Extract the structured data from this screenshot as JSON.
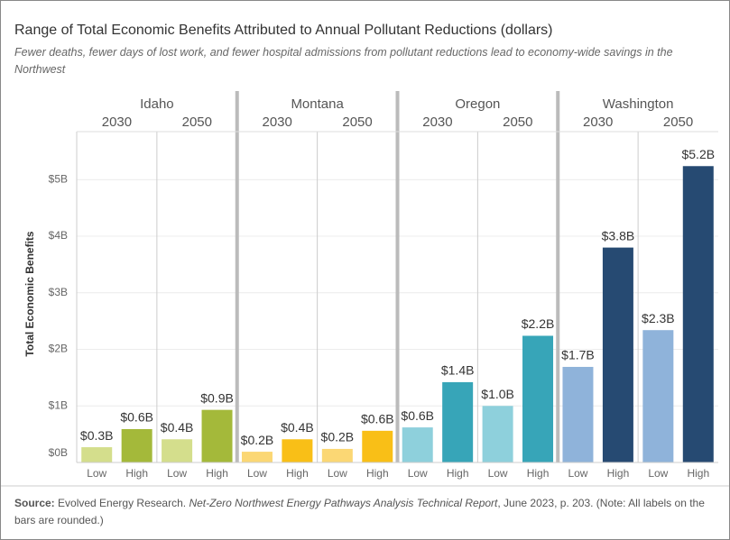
{
  "chart_data": {
    "type": "bar",
    "title": "Range of Total Economic Benefits Attributed to Annual Pollutant Reductions (dollars)",
    "subtitle": "Fewer deaths, fewer days of lost work, and fewer hospital admissions from pollutant reductions lead to economy-wide savings in the Northwest",
    "y_label": "Total Economic Benefits",
    "ylim": [
      0,
      5.85
    ],
    "yticks": [
      {
        "value": 0,
        "label": "$0B"
      },
      {
        "value": 1,
        "label": "$1B"
      },
      {
        "value": 2,
        "label": "$2B"
      },
      {
        "value": 3,
        "label": "$3B"
      },
      {
        "value": 4,
        "label": "$4B"
      },
      {
        "value": 5,
        "label": "$5B"
      }
    ],
    "grid": true,
    "groups": [
      {
        "name": "Idaho",
        "colors": [
          "#d4de8c",
          "#a4b93a"
        ],
        "subgroups": [
          {
            "name": "2030",
            "categories": [
              "Low",
              "High"
            ],
            "values": [
              0.27,
              0.59
            ],
            "value_labels": [
              "$0.3B",
              "$0.6B"
            ]
          },
          {
            "name": "2050",
            "categories": [
              "Low",
              "High"
            ],
            "values": [
              0.41,
              0.93
            ],
            "value_labels": [
              "$0.4B",
              "$0.9B"
            ]
          }
        ]
      },
      {
        "name": "Montana",
        "colors": [
          "#fbd774",
          "#f9bf17"
        ],
        "subgroups": [
          {
            "name": "2030",
            "categories": [
              "Low",
              "High"
            ],
            "values": [
              0.19,
              0.41
            ],
            "value_labels": [
              "$0.2B",
              "$0.4B"
            ]
          },
          {
            "name": "2050",
            "categories": [
              "Low",
              "High"
            ],
            "values": [
              0.24,
              0.56
            ],
            "value_labels": [
              "$0.2B",
              "$0.6B"
            ]
          }
        ]
      },
      {
        "name": "Oregon",
        "colors": [
          "#8ed0dc",
          "#37a5b8"
        ],
        "subgroups": [
          {
            "name": "2030",
            "categories": [
              "Low",
              "High"
            ],
            "values": [
              0.62,
              1.42
            ],
            "value_labels": [
              "$0.6B",
              "$1.4B"
            ]
          },
          {
            "name": "2050",
            "categories": [
              "Low",
              "High"
            ],
            "values": [
              1.0,
              2.24
            ],
            "value_labels": [
              "$1.0B",
              "$2.2B"
            ]
          }
        ]
      },
      {
        "name": "Washington",
        "colors": [
          "#8fb3da",
          "#264a72"
        ],
        "subgroups": [
          {
            "name": "2030",
            "categories": [
              "Low",
              "High"
            ],
            "values": [
              1.69,
              3.8
            ],
            "value_labels": [
              "$1.7B",
              "$3.8B"
            ]
          },
          {
            "name": "2050",
            "categories": [
              "Low",
              "High"
            ],
            "values": [
              2.34,
              5.24
            ],
            "value_labels": [
              "$2.3B",
              "$5.2B"
            ]
          }
        ]
      }
    ],
    "source": {
      "label": "Source:",
      "text": "Evolved Energy Research.",
      "report": "Net-Zero Northwest Energy Pathways Analysis Technical Report",
      "details": ", June 2023, p. 203. (Note: All labels on the bars are rounded.)"
    }
  }
}
